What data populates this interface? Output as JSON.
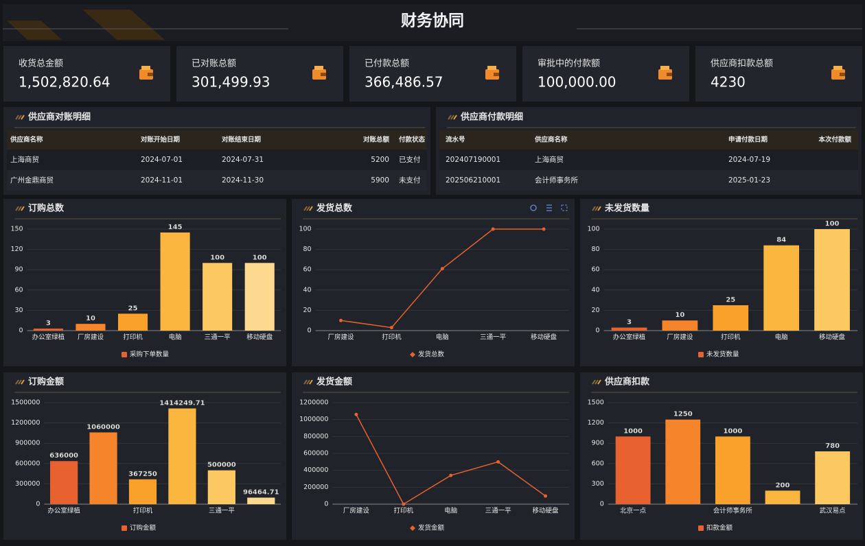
{
  "header": {
    "title": "财务协同"
  },
  "kpis": [
    {
      "label": "收货总金额",
      "value": "1,502,820.64"
    },
    {
      "label": "已对账总额",
      "value": "301,499.93"
    },
    {
      "label": "已付款总额",
      "value": "366,486.57"
    },
    {
      "label": "审批中的付款额",
      "value": "100,000.00"
    },
    {
      "label": "供应商扣款总额",
      "value": "4230"
    }
  ],
  "tables": [
    {
      "title": "供应商对账明细",
      "columns": [
        "供应商名称",
        "对账开始日期",
        "对账结束日期",
        "对账总额",
        "付款状态"
      ],
      "rows": [
        [
          "上海商贸",
          "2024-07-01",
          "2024-07-31",
          "5200",
          "已支付"
        ],
        [
          "广州金鼎商贸",
          "2024-11-01",
          "2024-11-30",
          "5900",
          "未支付"
        ]
      ]
    },
    {
      "title": "供应商付款明细",
      "columns": [
        "流水号",
        "供应商名称",
        "申请付款日期",
        "本次付款额"
      ],
      "rows": [
        [
          "202407190001",
          "上海商贸",
          "2024-07-19"
        ],
        [
          "202506210001",
          "会计师事务所",
          "2025-01-23"
        ]
      ]
    }
  ],
  "chart_data": [
    {
      "type": "bar",
      "title": "订购总数",
      "categories": [
        "办公室绿植",
        "厂房建设",
        "打印机",
        "电脑",
        "三通一平",
        "移动硬盘"
      ],
      "series": [
        {
          "name": "采购下单数量",
          "colors": [
            "#e8622f",
            "#f5842a",
            "#f9a12a",
            "#fbb640",
            "#fcc862",
            "#fdd88f"
          ],
          "values": [
            3,
            10,
            25,
            145,
            100,
            100
          ]
        }
      ],
      "ylim": [
        0,
        150
      ],
      "yticks": [
        0,
        30,
        60,
        90,
        120,
        150
      ]
    },
    {
      "type": "line",
      "title": "发货总数",
      "categories": [
        "厂房建设",
        "打印机",
        "电脑",
        "三通一平",
        "移动硬盘"
      ],
      "series": [
        {
          "name": "发货总数",
          "color": "#e8622f",
          "values": [
            10,
            3,
            61,
            100,
            100
          ]
        }
      ],
      "ylim": [
        0,
        100
      ],
      "yticks": [
        0,
        20,
        40,
        60,
        80,
        100
      ]
    },
    {
      "type": "bar",
      "title": "未发货数量",
      "categories": [
        "办公室绿植",
        "厂房建设",
        "打印机",
        "电脑",
        "移动硬盘"
      ],
      "series": [
        {
          "name": "未发货数量",
          "colors": [
            "#e8622f",
            "#f5842a",
            "#f9a12a",
            "#fbb640",
            "#fcc862"
          ],
          "values": [
            3,
            10,
            25,
            84,
            100
          ]
        }
      ],
      "ylim": [
        0,
        100
      ],
      "yticks": [
        0,
        20,
        40,
        60,
        80,
        100
      ]
    },
    {
      "type": "bar",
      "title": "订购金额",
      "categories": [
        "办公室绿植",
        null,
        "打印机",
        null,
        "三通一平",
        null
      ],
      "series": [
        {
          "name": "订购金额",
          "colors": [
            "#e8622f",
            "#f5842a",
            "#f9a12a",
            "#fbb640",
            "#fcc862",
            "#fdd88f"
          ],
          "values": [
            636000,
            1060000,
            367250,
            1414249.71,
            500000,
            96464.71
          ]
        }
      ],
      "ylim": [
        0,
        1500000
      ],
      "yticks": [
        0,
        300000,
        600000,
        900000,
        1200000,
        1500000
      ]
    },
    {
      "type": "line",
      "title": "发货金额",
      "categories": [
        "厂房建设",
        "打印机",
        "电脑",
        "三通一平",
        "移动硬盘"
      ],
      "series": [
        {
          "name": "发货金额",
          "color": "#e8622f",
          "values": [
            1060000,
            0,
            340000,
            500000,
            96000
          ]
        }
      ],
      "ylim": [
        0,
        1200000
      ],
      "yticks": [
        0,
        200000,
        400000,
        600000,
        800000,
        1000000,
        1200000
      ]
    },
    {
      "type": "bar",
      "title": "供应商扣款",
      "categories": [
        "北京一点",
        null,
        "会计师事务所",
        null,
        "武汉易点"
      ],
      "series": [
        {
          "name": "扣款金额",
          "colors": [
            "#e8622f",
            "#f5842a",
            "#f9a12a",
            "#fbb640",
            "#fcc862"
          ],
          "values": [
            1000,
            1250,
            1000,
            200,
            780
          ]
        }
      ],
      "ylim": [
        0,
        1500
      ],
      "yticks": [
        0,
        300,
        600,
        900,
        1200,
        1500
      ]
    }
  ]
}
